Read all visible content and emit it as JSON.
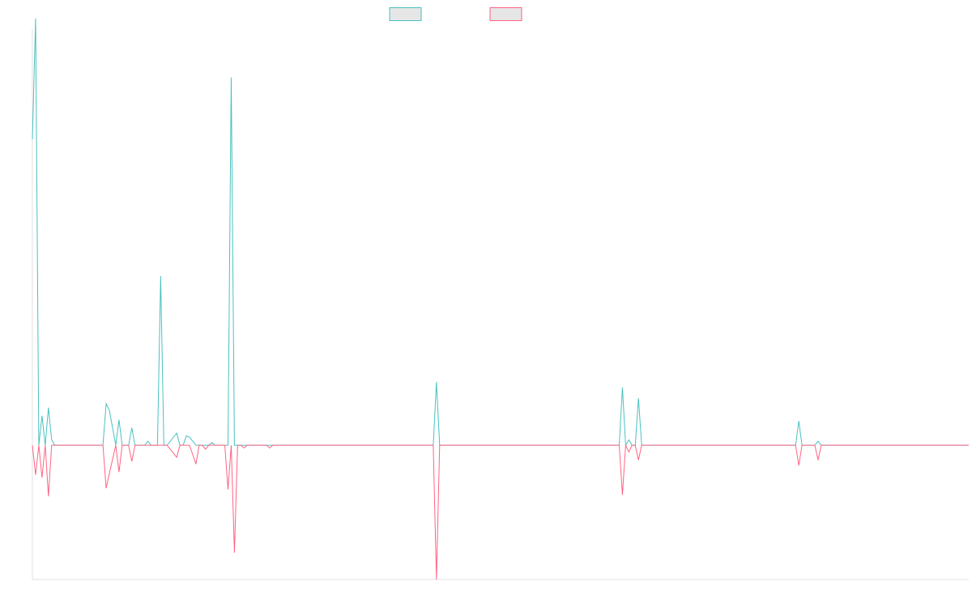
{
  "colors": {
    "teal": "#4bc0c0",
    "pink": "#ff6384",
    "swatch_fill": "#e6e6e6",
    "axis": "#e0e0e0"
  },
  "chart_data": {
    "type": "line",
    "title": "",
    "xlabel": "",
    "ylabel": "",
    "legend_position": "top-center",
    "grid": false,
    "x_range": [
      0,
      292
    ],
    "ylim": [
      -1.0,
      3.1
    ],
    "x": [
      0,
      1,
      2,
      3,
      4,
      5,
      6,
      7,
      22,
      23,
      24,
      26,
      27,
      28,
      30,
      31,
      32,
      35,
      36,
      37,
      39,
      40,
      41,
      42,
      45,
      46,
      47,
      48,
      49,
      51,
      52,
      53,
      54,
      55,
      56,
      57,
      58,
      60,
      61,
      62,
      63,
      64,
      65,
      66,
      67,
      73,
      74,
      75,
      81,
      82,
      83,
      125,
      126,
      127,
      127.5,
      183,
      184,
      185,
      186,
      187,
      188,
      189,
      190,
      238,
      239,
      240,
      244,
      245,
      246,
      292
    ],
    "series": [
      {
        "name": "",
        "color": "#4bc0c0",
        "values": [
          2.28,
          3.18,
          0,
          0.22,
          0,
          0.28,
          0.04,
          0,
          0,
          0.31,
          0.26,
          0,
          0.19,
          0,
          0,
          0.13,
          0,
          0,
          0.03,
          0,
          0,
          1.26,
          0,
          0,
          0.09,
          0,
          0,
          0.07,
          0.06,
          0,
          0,
          0,
          0,
          0,
          0.02,
          0,
          0,
          0,
          0,
          2.74,
          0,
          0,
          0,
          0,
          0,
          0,
          0,
          0,
          0,
          0,
          0,
          0,
          0.47,
          0,
          0,
          0,
          0.43,
          0,
          0.04,
          0,
          0,
          0.35,
          0,
          0,
          0.18,
          0,
          0,
          0.03,
          0,
          0
        ]
      },
      {
        "name": "",
        "color": "#ff6384",
        "values": [
          0,
          -0.22,
          0,
          -0.24,
          0,
          -0.38,
          0,
          0,
          0,
          -0.32,
          -0.21,
          0,
          -0.2,
          0,
          0,
          -0.12,
          0,
          0,
          0,
          0,
          0,
          0,
          0,
          0,
          -0.09,
          0,
          0,
          0,
          0,
          -0.14,
          0,
          0,
          -0.03,
          0,
          0,
          0,
          0,
          0,
          -0.33,
          0,
          -0.8,
          0,
          0,
          -0.02,
          0,
          0,
          -0.02,
          0,
          0,
          0,
          0,
          0,
          -1.0,
          0,
          0,
          0,
          -0.37,
          0,
          -0.05,
          0,
          0,
          -0.11,
          0,
          0,
          -0.15,
          0,
          0,
          -0.11,
          0,
          0
        ]
      }
    ]
  }
}
